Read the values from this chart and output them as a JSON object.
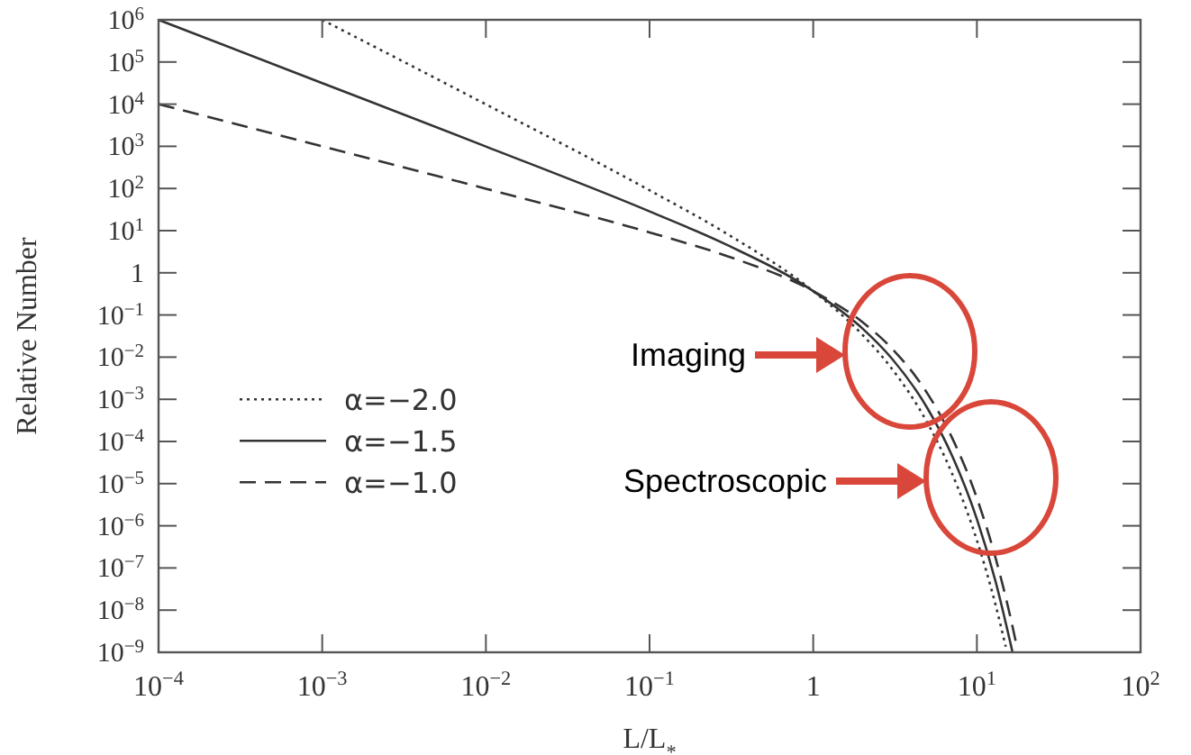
{
  "chart_data": {
    "type": "line",
    "xlabel": "L/L$_{*}$",
    "ylabel": "Relative Number",
    "log": "xy",
    "xlim": [
      0.0001,
      100
    ],
    "ylim": [
      1e-09,
      1000000
    ],
    "xticks": [
      {
        "value": 0.0001,
        "label": "10$^{−4}$"
      },
      {
        "value": 0.001,
        "label": "10$^{−3}$"
      },
      {
        "value": 0.01,
        "label": "10$^{−2}$"
      },
      {
        "value": 0.1,
        "label": "10$^{−1}$"
      },
      1,
      {
        "value": 10,
        "label": "10$^{1}$"
      },
      {
        "value": 100,
        "label": "10$^{2}$"
      }
    ],
    "yticks": [
      {
        "value": 1e-09,
        "label": "10$^{−9}$"
      },
      {
        "value": 1e-08,
        "label": "10$^{−8}$"
      },
      {
        "value": 1e-07,
        "label": "10$^{−7}$"
      },
      {
        "value": 1e-06,
        "label": "10$^{−6}$"
      },
      {
        "value": 1e-05,
        "label": "10$^{−5}$"
      },
      {
        "value": 0.0001,
        "label": "10$^{−4}$"
      },
      {
        "value": 0.001,
        "label": "10$^{−3}$"
      },
      {
        "value": 0.01,
        "label": "10$^{−2}$"
      },
      {
        "value": 0.1,
        "label": "10$^{−1}$"
      },
      1,
      {
        "value": 10,
        "label": "10$^{1}$"
      },
      {
        "value": 100,
        "label": "10$^{2}$"
      },
      {
        "value": 1000,
        "label": "10$^{3}$"
      },
      {
        "value": 10000,
        "label": "10$^{4}$"
      },
      {
        "value": 100000,
        "label": "10$^{5}$"
      },
      {
        "value": 1000000,
        "label": "10$^{6}$"
      }
    ],
    "grid": false,
    "legend": "bottom left",
    "series": [
      {
        "name": "α=−2.0",
        "color": "#333333",
        "line_style": "dotted",
        "x": [
          0.001,
          0.01,
          0.1,
          0.3,
          1,
          2,
          3,
          5,
          7,
          10,
          13,
          15
        ],
        "values": [
          999000,
          9900,
          90.5,
          8.23,
          0.368,
          0.0338,
          0.00553,
          0.00027,
          1.86e-05,
          4.54e-07,
          1.34e-08,
          1.36e-09
        ]
      },
      {
        "name": "α=−1.5",
        "color": "#333333",
        "line_style": "solid",
        "x": [
          0.0001,
          0.001,
          0.01,
          0.1,
          0.3,
          1,
          2,
          3,
          5,
          7,
          10,
          13,
          16.5
        ],
        "values": [
          1000000,
          31600,
          990,
          28.6,
          4.51,
          0.368,
          0.0478,
          0.00958,
          0.000603,
          4.92e-05,
          1.44e-06,
          4.82e-08,
          1.02e-09
        ]
      },
      {
        "name": "α=−1.0",
        "color": "#333333",
        "line_style": "dashed",
        "x": [
          0.0001,
          0.001,
          0.01,
          0.1,
          0.3,
          1,
          2,
          3,
          5,
          7,
          10,
          13,
          16,
          17.5
        ],
        "values": [
          10000,
          999,
          99,
          9.05,
          2.47,
          0.368,
          0.0677,
          0.0166,
          0.00135,
          0.00013,
          4.54e-06,
          1.74e-07,
          7.03e-09,
          1.43e-09
        ]
      }
    ],
    "annotations": [
      "Imaging",
      "Spectroscopic"
    ]
  }
}
